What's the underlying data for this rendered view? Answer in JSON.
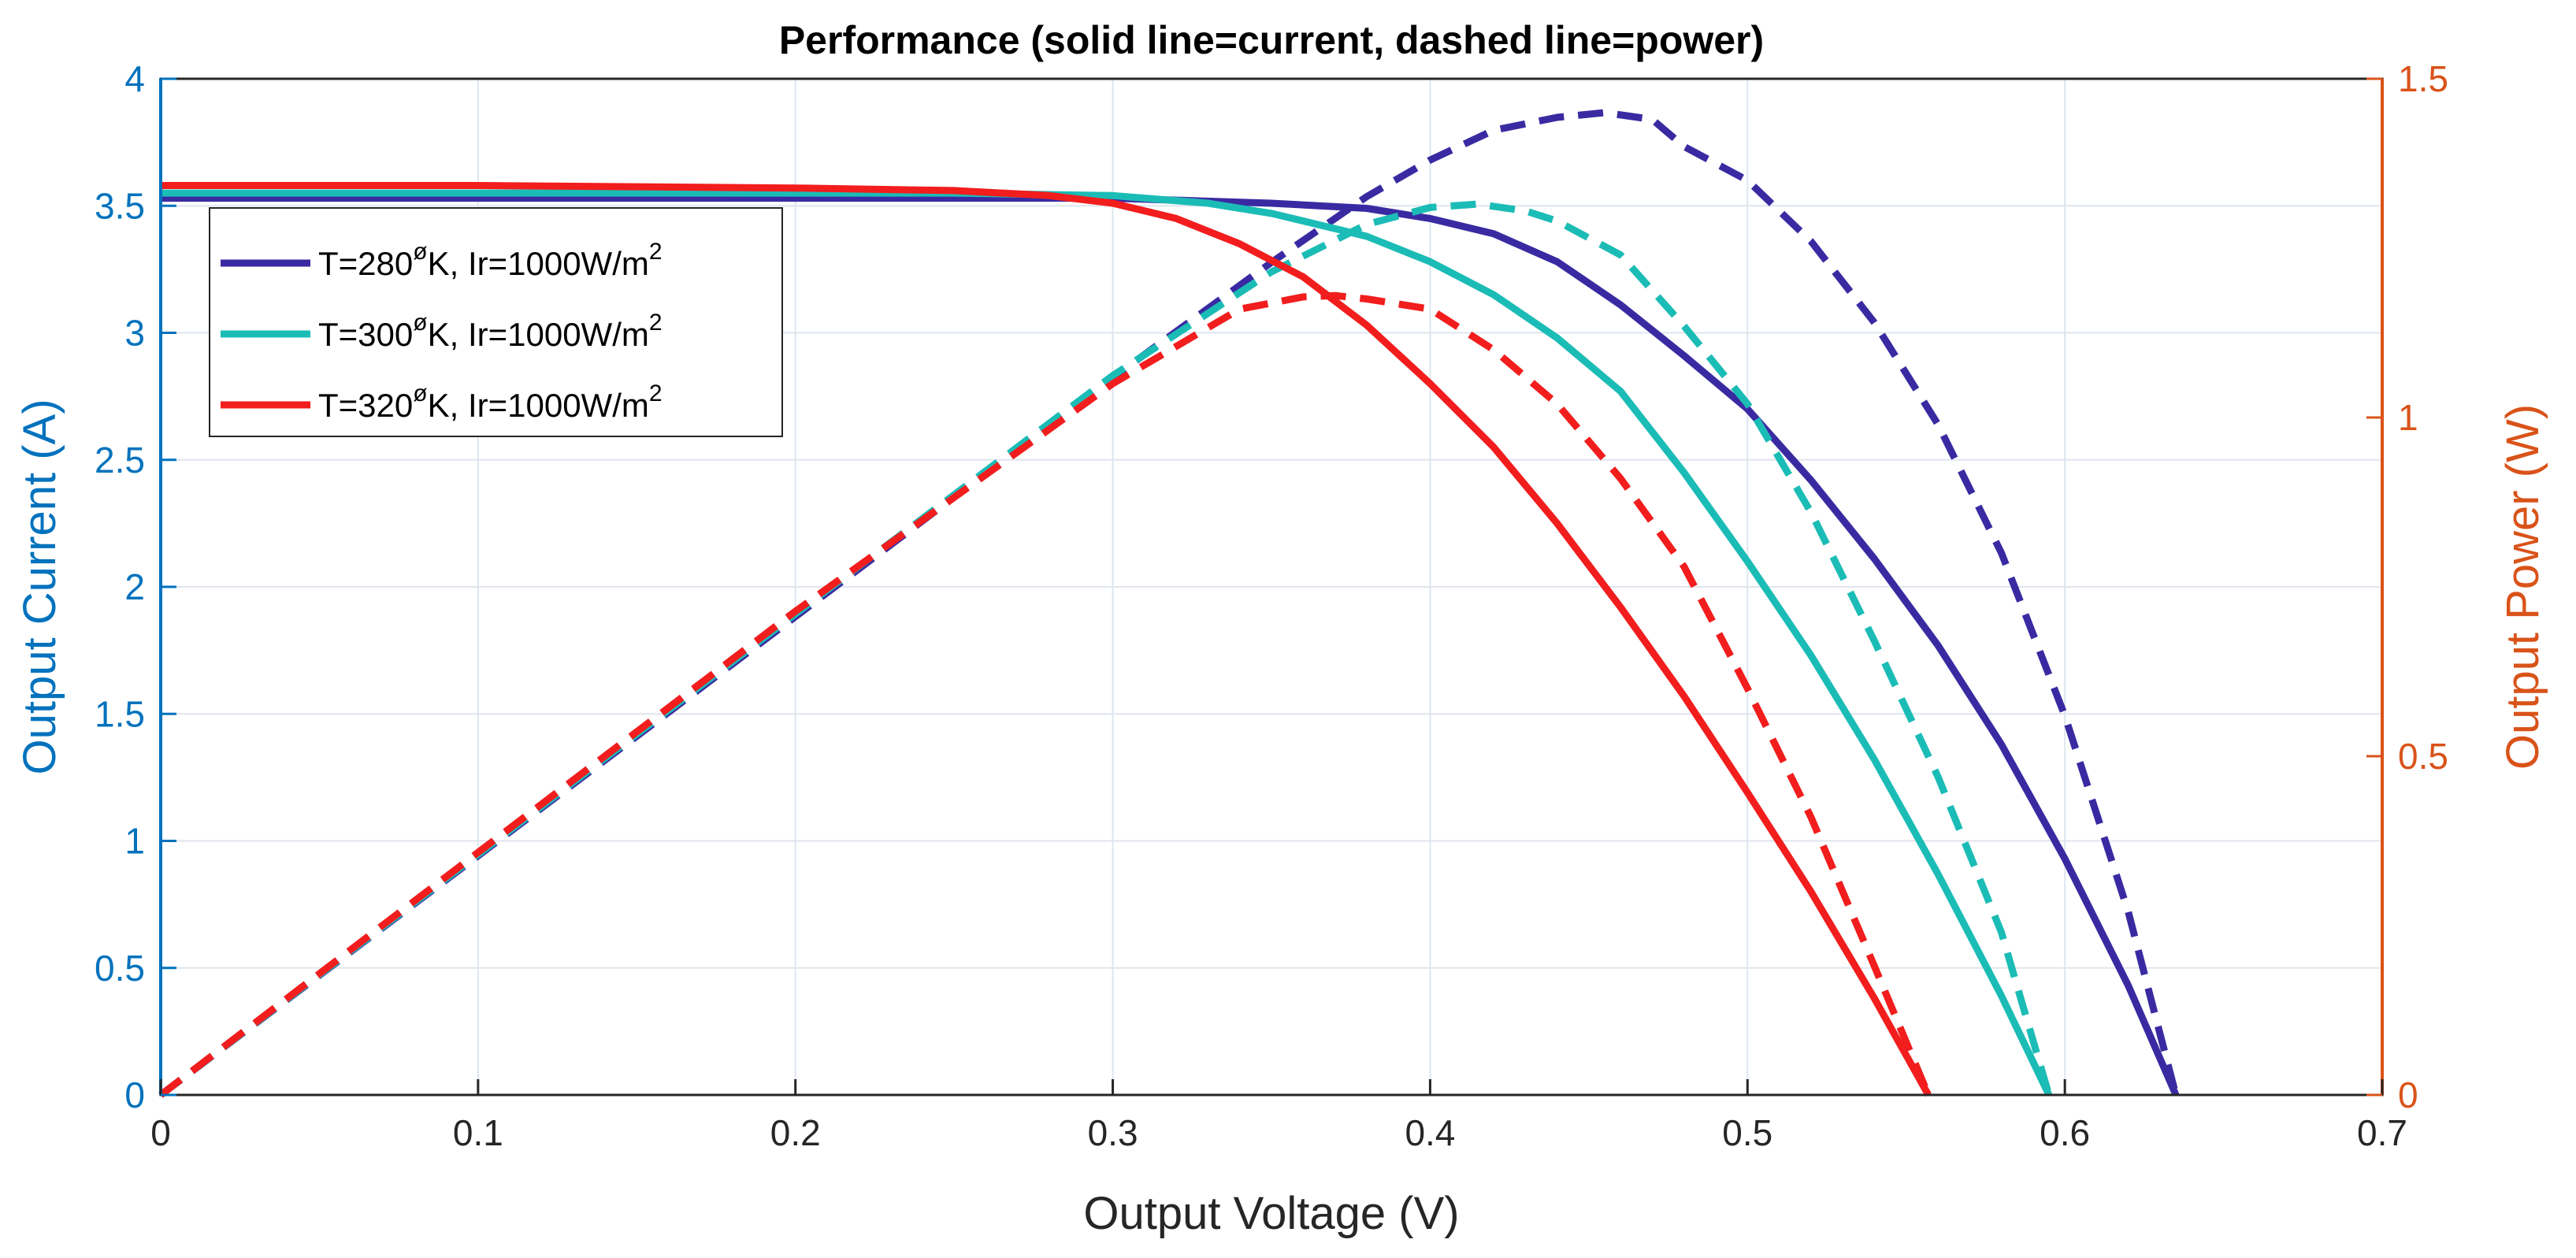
{
  "chart_data": {
    "type": "line",
    "title": "Performance (solid line=current, dashed line=power)",
    "xlabel": "Output Voltage (V)",
    "ylabel_left": "Output Current (A)",
    "ylabel_right": "Output Power (W)",
    "xlim": [
      0,
      0.7
    ],
    "ylim_left": [
      0,
      4
    ],
    "ylim_right": [
      0,
      1.5
    ],
    "xticks": [
      "0",
      "0.1",
      "0.2",
      "0.3",
      "0.4",
      "0.5",
      "0.6",
      "0.7"
    ],
    "yticks_left": [
      "0",
      "0.5",
      "1",
      "1.5",
      "2",
      "2.5",
      "3",
      "3.5",
      "4"
    ],
    "yticks_right": [
      "0",
      "0.5",
      "1",
      "1.5"
    ],
    "grid": true,
    "legend_position": "upper-left",
    "colors": {
      "left_axis": "#0072BD",
      "right_axis": "#D95319",
      "frame": "#262626",
      "grid": "#dfe6ef"
    },
    "series": [
      {
        "name": "T=280°K, Ir=1000W/m2",
        "legend": {
          "prefix": "T=280",
          "degree": "ø",
          "middle": "K, Ir=1000W/m",
          "sup": "2"
        },
        "color": "#3A2AA2",
        "current": {
          "x": [
            0,
            0.1,
            0.2,
            0.3,
            0.35,
            0.38,
            0.4,
            0.42,
            0.44,
            0.46,
            0.48,
            0.5,
            0.52,
            0.54,
            0.56,
            0.58,
            0.6,
            0.62,
            0.635
          ],
          "y": [
            3.53,
            3.53,
            3.53,
            3.53,
            3.51,
            3.49,
            3.45,
            3.39,
            3.28,
            3.11,
            2.91,
            2.7,
            2.42,
            2.11,
            1.77,
            1.38,
            0.93,
            0.43,
            0
          ]
        },
        "power": {
          "x": [
            0,
            0.1,
            0.2,
            0.3,
            0.35,
            0.38,
            0.4,
            0.42,
            0.44,
            0.455,
            0.47,
            0.48,
            0.5,
            0.52,
            0.54,
            0.56,
            0.58,
            0.6,
            0.62,
            0.635
          ],
          "y": [
            0,
            0.353,
            0.706,
            1.059,
            1.229,
            1.326,
            1.38,
            1.424,
            1.443,
            1.45,
            1.44,
            1.4,
            1.35,
            1.26,
            1.14,
            0.99,
            0.8,
            0.56,
            0.27,
            0
          ]
        }
      },
      {
        "name": "T=300°K, Ir=1000W/m2",
        "legend": {
          "prefix": "T=300",
          "degree": "ø",
          "middle": "K, Ir=1000W/m",
          "sup": "2"
        },
        "color": "#1BBCB6",
        "current": {
          "x": [
            0,
            0.1,
            0.2,
            0.25,
            0.3,
            0.33,
            0.35,
            0.38,
            0.4,
            0.42,
            0.44,
            0.46,
            0.48,
            0.5,
            0.52,
            0.54,
            0.56,
            0.58,
            0.595
          ],
          "y": [
            3.55,
            3.55,
            3.55,
            3.55,
            3.54,
            3.51,
            3.47,
            3.38,
            3.28,
            3.15,
            2.98,
            2.77,
            2.45,
            2.1,
            1.73,
            1.32,
            0.87,
            0.39,
            0
          ]
        },
        "power": {
          "x": [
            0,
            0.1,
            0.2,
            0.3,
            0.35,
            0.38,
            0.4,
            0.415,
            0.43,
            0.44,
            0.46,
            0.48,
            0.5,
            0.52,
            0.54,
            0.56,
            0.58,
            0.595
          ],
          "y": [
            0,
            0.355,
            0.71,
            1.062,
            1.215,
            1.285,
            1.31,
            1.315,
            1.305,
            1.29,
            1.24,
            1.135,
            1.02,
            0.86,
            0.67,
            0.47,
            0.24,
            0
          ]
        }
      },
      {
        "name": "T=320°K, Ir=1000W/m2",
        "legend": {
          "prefix": "T=320",
          "degree": "ø",
          "middle": "K, Ir=1000W/m",
          "sup": "2"
        },
        "color": "#F21D1D",
        "current": {
          "x": [
            0,
            0.1,
            0.2,
            0.25,
            0.28,
            0.3,
            0.32,
            0.34,
            0.36,
            0.38,
            0.4,
            0.42,
            0.44,
            0.46,
            0.48,
            0.5,
            0.52,
            0.54,
            0.557
          ],
          "y": [
            3.58,
            3.58,
            3.57,
            3.56,
            3.54,
            3.51,
            3.45,
            3.35,
            3.22,
            3.03,
            2.8,
            2.55,
            2.25,
            1.92,
            1.57,
            1.19,
            0.8,
            0.38,
            0
          ]
        },
        "power": {
          "x": [
            0,
            0.1,
            0.2,
            0.3,
            0.34,
            0.36,
            0.37,
            0.38,
            0.4,
            0.42,
            0.44,
            0.46,
            0.48,
            0.5,
            0.52,
            0.54,
            0.557
          ],
          "y": [
            0,
            0.358,
            0.714,
            1.05,
            1.16,
            1.178,
            1.18,
            1.175,
            1.16,
            1.1,
            1.02,
            0.91,
            0.78,
            0.6,
            0.41,
            0.19,
            0
          ]
        }
      }
    ]
  }
}
